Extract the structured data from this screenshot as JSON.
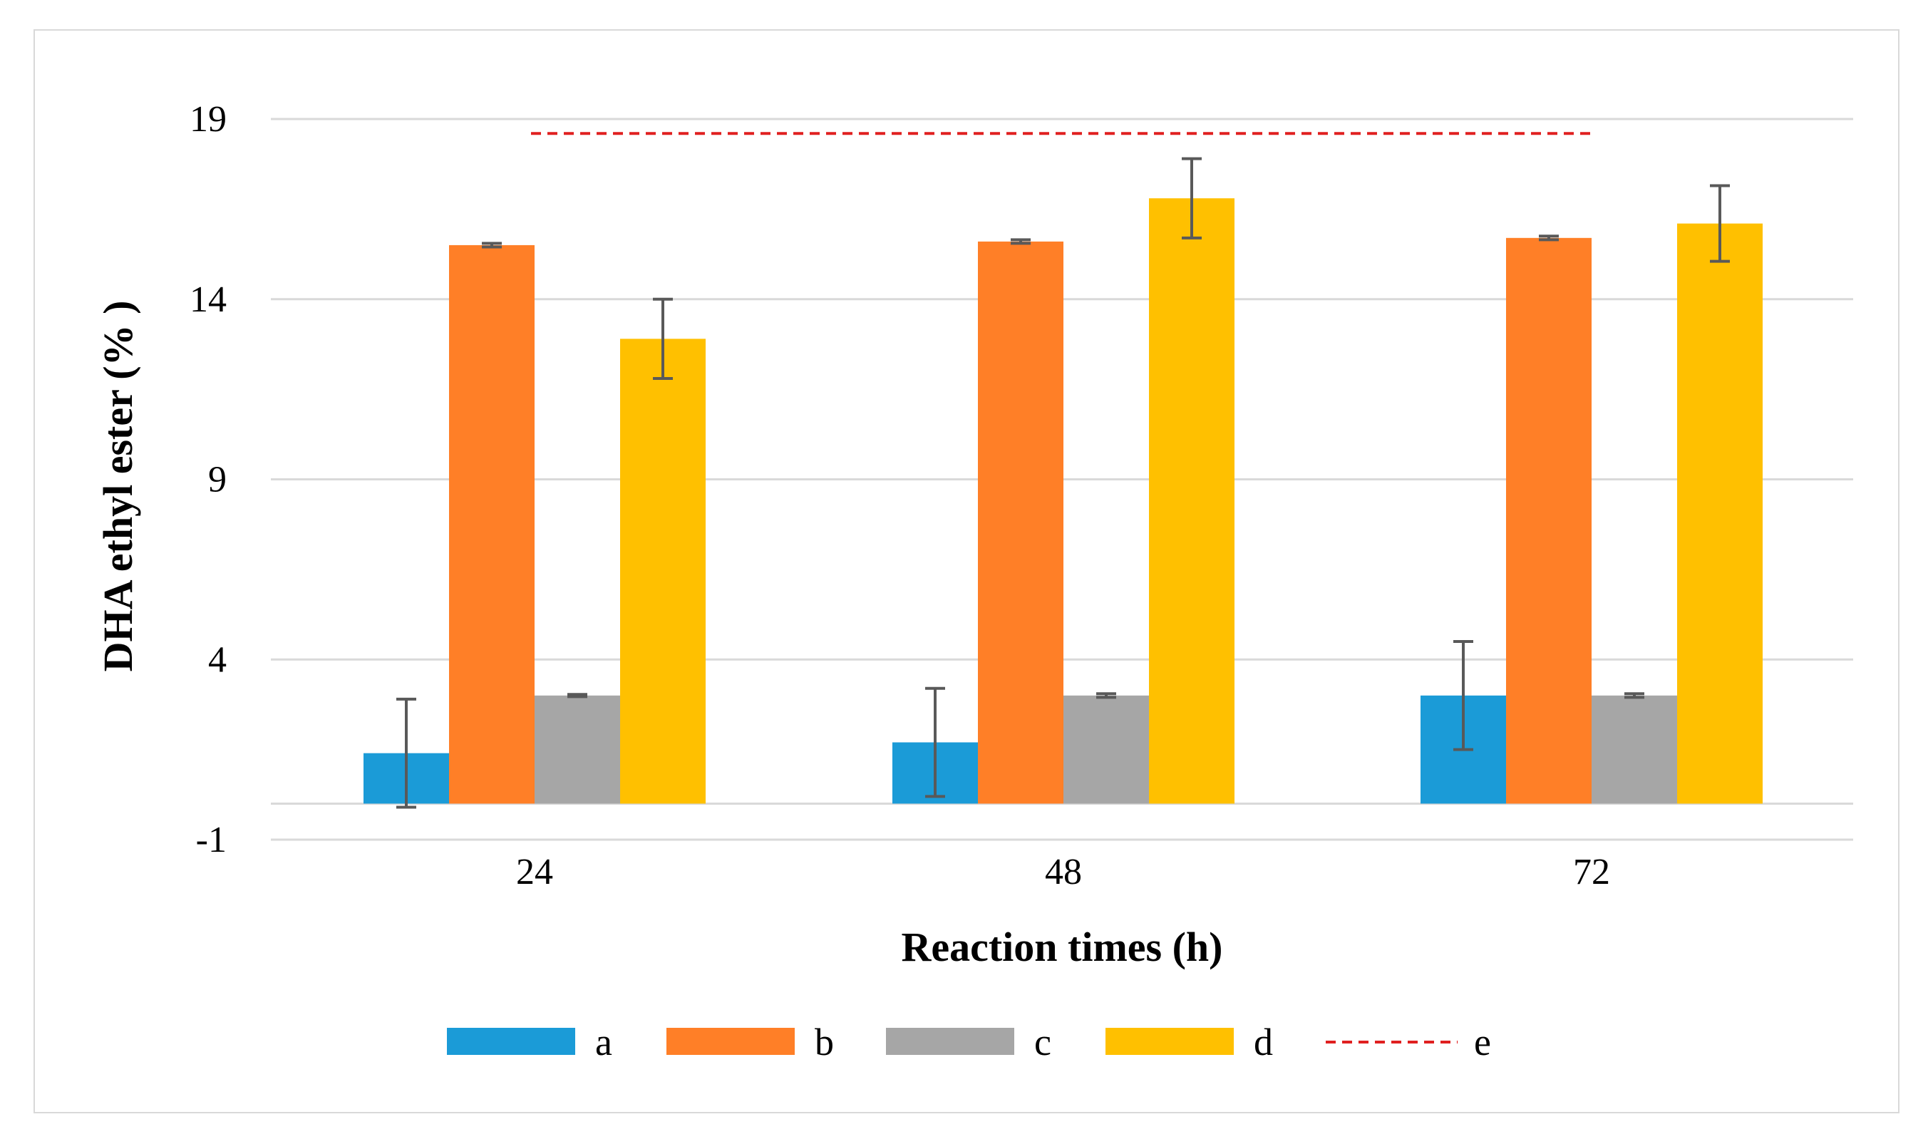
{
  "chart_data": {
    "type": "bar",
    "title": "",
    "xlabel": "Reaction times (h)",
    "ylabel": "DHA ethyl ester (% )",
    "ylim": [
      -1,
      19
    ],
    "yticks": [
      "19",
      "14",
      "9",
      "4",
      "-1"
    ],
    "ytick_values": [
      19,
      14,
      9,
      4,
      -1
    ],
    "categories": [
      "24",
      "48",
      "72"
    ],
    "grid": true,
    "legend_position": "bottom",
    "series": [
      {
        "name": "a",
        "color": "#1b9bd7",
        "values": [
          1.4,
          1.7,
          3.0
        ],
        "errors": [
          1.5,
          1.5,
          1.5
        ]
      },
      {
        "name": "b",
        "color": "#ff7f27",
        "values": [
          15.5,
          15.6,
          15.7
        ],
        "errors": [
          0.05,
          0.05,
          0.05
        ]
      },
      {
        "name": "c",
        "color": "#a6a6a6",
        "values": [
          3.0,
          3.0,
          3.0
        ],
        "errors": [
          0.03,
          0.05,
          0.05
        ]
      },
      {
        "name": "d",
        "color": "#ffc000",
        "values": [
          12.9,
          16.8,
          16.1
        ],
        "errors": [
          1.1,
          1.1,
          1.05
        ]
      }
    ],
    "reference_line": {
      "name": "e",
      "color": "#e02020",
      "value": 18.6,
      "style": "dashed"
    }
  }
}
